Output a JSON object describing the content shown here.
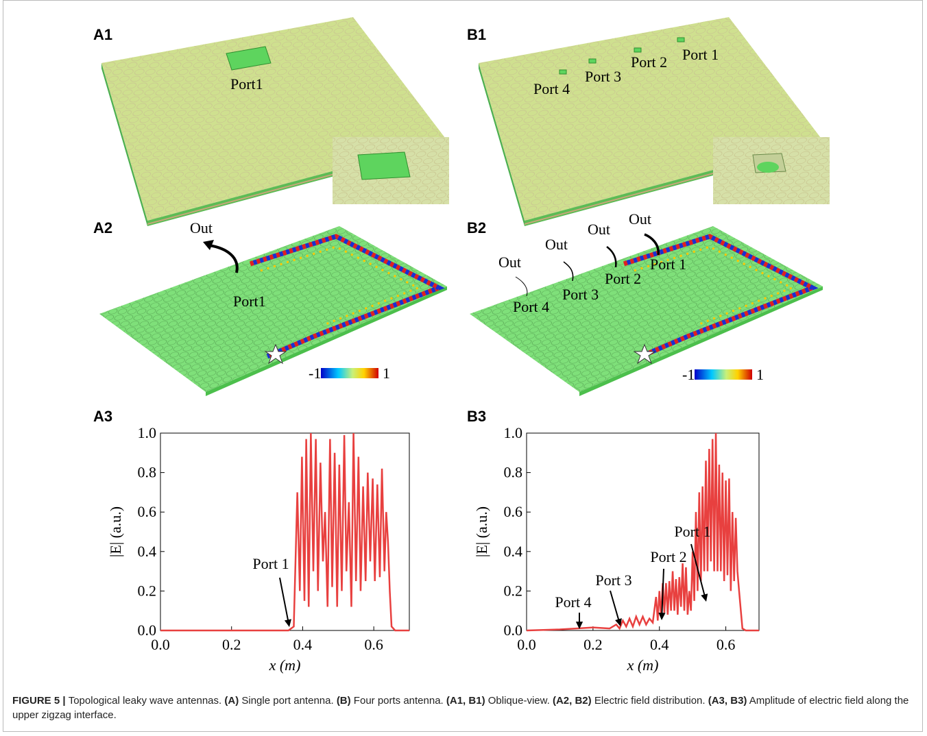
{
  "panels": {
    "A1": {
      "label": "A1",
      "ports": [
        "Port1"
      ]
    },
    "B1": {
      "label": "B1",
      "ports": [
        "Port 4",
        "Port 3",
        "Port 2",
        "Port 1"
      ]
    },
    "A2": {
      "label": "A2",
      "outs": [
        "Out"
      ],
      "ports": [
        "Port1"
      ],
      "colorbar": [
        "-1",
        "1"
      ]
    },
    "B2": {
      "label": "B2",
      "outs": [
        "Out",
        "Out",
        "Out",
        "Out"
      ],
      "ports": [
        "Port 4",
        "Port 3",
        "Port 2",
        "Port 1"
      ],
      "colorbar": [
        "-1",
        "1"
      ]
    },
    "A3": {
      "label": "A3"
    },
    "B3": {
      "label": "B3"
    }
  },
  "chart_data": [
    {
      "type": "line",
      "xlabel": "x (m)",
      "ylabel": "|E| (a.u.)",
      "xlim": [
        0,
        0.7
      ],
      "ylim": [
        0,
        1
      ],
      "xticks": [
        {
          "value": 0,
          "label": "0.0"
        },
        0.2,
        0.4,
        0.6
      ],
      "yticks": [
        {
          "value": 0,
          "label": "0.0"
        },
        0.2,
        0.4,
        0.6,
        0.8,
        {
          "value": 1,
          "label": "1.0"
        }
      ],
      "annotations": [
        "Port 1"
      ],
      "series": [
        {
          "color": "#e8403f",
          "x": [
            0,
            0.36,
            0.375,
            0.385,
            0.392,
            0.398,
            0.405,
            0.41,
            0.417,
            0.423,
            0.43,
            0.437,
            0.443,
            0.45,
            0.457,
            0.463,
            0.47,
            0.477,
            0.483,
            0.49,
            0.497,
            0.503,
            0.51,
            0.517,
            0.523,
            0.53,
            0.537,
            0.543,
            0.55,
            0.557,
            0.563,
            0.57,
            0.577,
            0.583,
            0.59,
            0.597,
            0.603,
            0.61,
            0.617,
            0.623,
            0.63,
            0.635,
            0.64,
            0.645,
            0.65,
            0.66,
            0.7
          ],
          "values": [
            0,
            0,
            0.02,
            0.7,
            0.2,
            0.88,
            0.15,
            0.97,
            0.12,
            1.0,
            0.3,
            0.97,
            0.2,
            0.85,
            0.35,
            0.6,
            0.12,
            0.97,
            0.22,
            0.9,
            0.12,
            0.84,
            0.2,
            0.99,
            0.3,
            0.65,
            0.12,
            1.0,
            0.25,
            0.88,
            0.2,
            0.73,
            0.25,
            0.8,
            0.35,
            0.77,
            0.25,
            0.74,
            0.27,
            0.82,
            0.3,
            0.6,
            0.45,
            0.2,
            0.02,
            0,
            0
          ]
        }
      ]
    },
    {
      "type": "line",
      "xlabel": "x (m)",
      "ylabel": "|E| (a.u.)",
      "xlim": [
        0,
        0.7
      ],
      "ylim": [
        0,
        1
      ],
      "xticks": [
        {
          "value": 0,
          "label": "0.0"
        },
        0.2,
        0.4,
        0.6
      ],
      "yticks": [
        {
          "value": 0,
          "label": "0.0"
        },
        0.2,
        0.4,
        0.6,
        0.8,
        {
          "value": 1,
          "label": "1.0"
        }
      ],
      "annotations": [
        "Port 4",
        "Port 3",
        "Port 2",
        "Port 1"
      ],
      "series": [
        {
          "color": "#e8403f",
          "x": [
            0,
            0.1,
            0.15,
            0.2,
            0.25,
            0.27,
            0.28,
            0.29,
            0.3,
            0.31,
            0.32,
            0.33,
            0.34,
            0.35,
            0.36,
            0.37,
            0.38,
            0.39,
            0.395,
            0.4,
            0.405,
            0.41,
            0.415,
            0.42,
            0.425,
            0.43,
            0.435,
            0.44,
            0.445,
            0.45,
            0.455,
            0.46,
            0.465,
            0.47,
            0.475,
            0.48,
            0.485,
            0.49,
            0.495,
            0.5,
            0.505,
            0.51,
            0.515,
            0.52,
            0.525,
            0.53,
            0.535,
            0.54,
            0.545,
            0.55,
            0.555,
            0.56,
            0.565,
            0.57,
            0.575,
            0.58,
            0.585,
            0.59,
            0.595,
            0.6,
            0.605,
            0.61,
            0.615,
            0.62,
            0.625,
            0.63,
            0.635,
            0.64,
            0.65,
            0.66,
            0.7
          ],
          "values": [
            0,
            0.005,
            0.01,
            0.015,
            0.01,
            0.03,
            0.01,
            0.05,
            0.02,
            0.06,
            0.02,
            0.07,
            0.03,
            0.07,
            0.03,
            0.06,
            0.04,
            0.17,
            0.05,
            0.2,
            0.07,
            0.24,
            0.09,
            0.24,
            0.08,
            0.25,
            0.1,
            0.3,
            0.1,
            0.26,
            0.08,
            0.27,
            0.12,
            0.34,
            0.1,
            0.32,
            0.08,
            0.2,
            0.1,
            0.4,
            0.15,
            0.6,
            0.2,
            0.7,
            0.25,
            0.73,
            0.3,
            0.86,
            0.3,
            0.92,
            0.35,
            0.97,
            0.3,
            1.0,
            0.3,
            0.84,
            0.3,
            0.8,
            0.25,
            0.76,
            0.28,
            0.77,
            0.2,
            0.6,
            0.25,
            0.57,
            0.3,
            0.2,
            0.01,
            0,
            0
          ]
        }
      ]
    }
  ],
  "caption": [
    {
      "text": "FIGURE 5 | ",
      "bold": true
    },
    {
      "text": "Topological leaky wave antennas. ",
      "bold": false
    },
    {
      "text": "(A)",
      "bold": true
    },
    {
      "text": " Single port antenna. ",
      "bold": false
    },
    {
      "text": "(B)",
      "bold": true
    },
    {
      "text": " Four ports antenna. ",
      "bold": false
    },
    {
      "text": "(A1, B1)",
      "bold": true
    },
    {
      "text": " Oblique-view. ",
      "bold": false
    },
    {
      "text": "(A2, B2)",
      "bold": true
    },
    {
      "text": " Electric field distribution. ",
      "bold": false
    },
    {
      "text": "(A3, B3)",
      "bold": true
    },
    {
      "text": " Amplitude of electric field along the upper zigzag interface.",
      "bold": false
    }
  ]
}
